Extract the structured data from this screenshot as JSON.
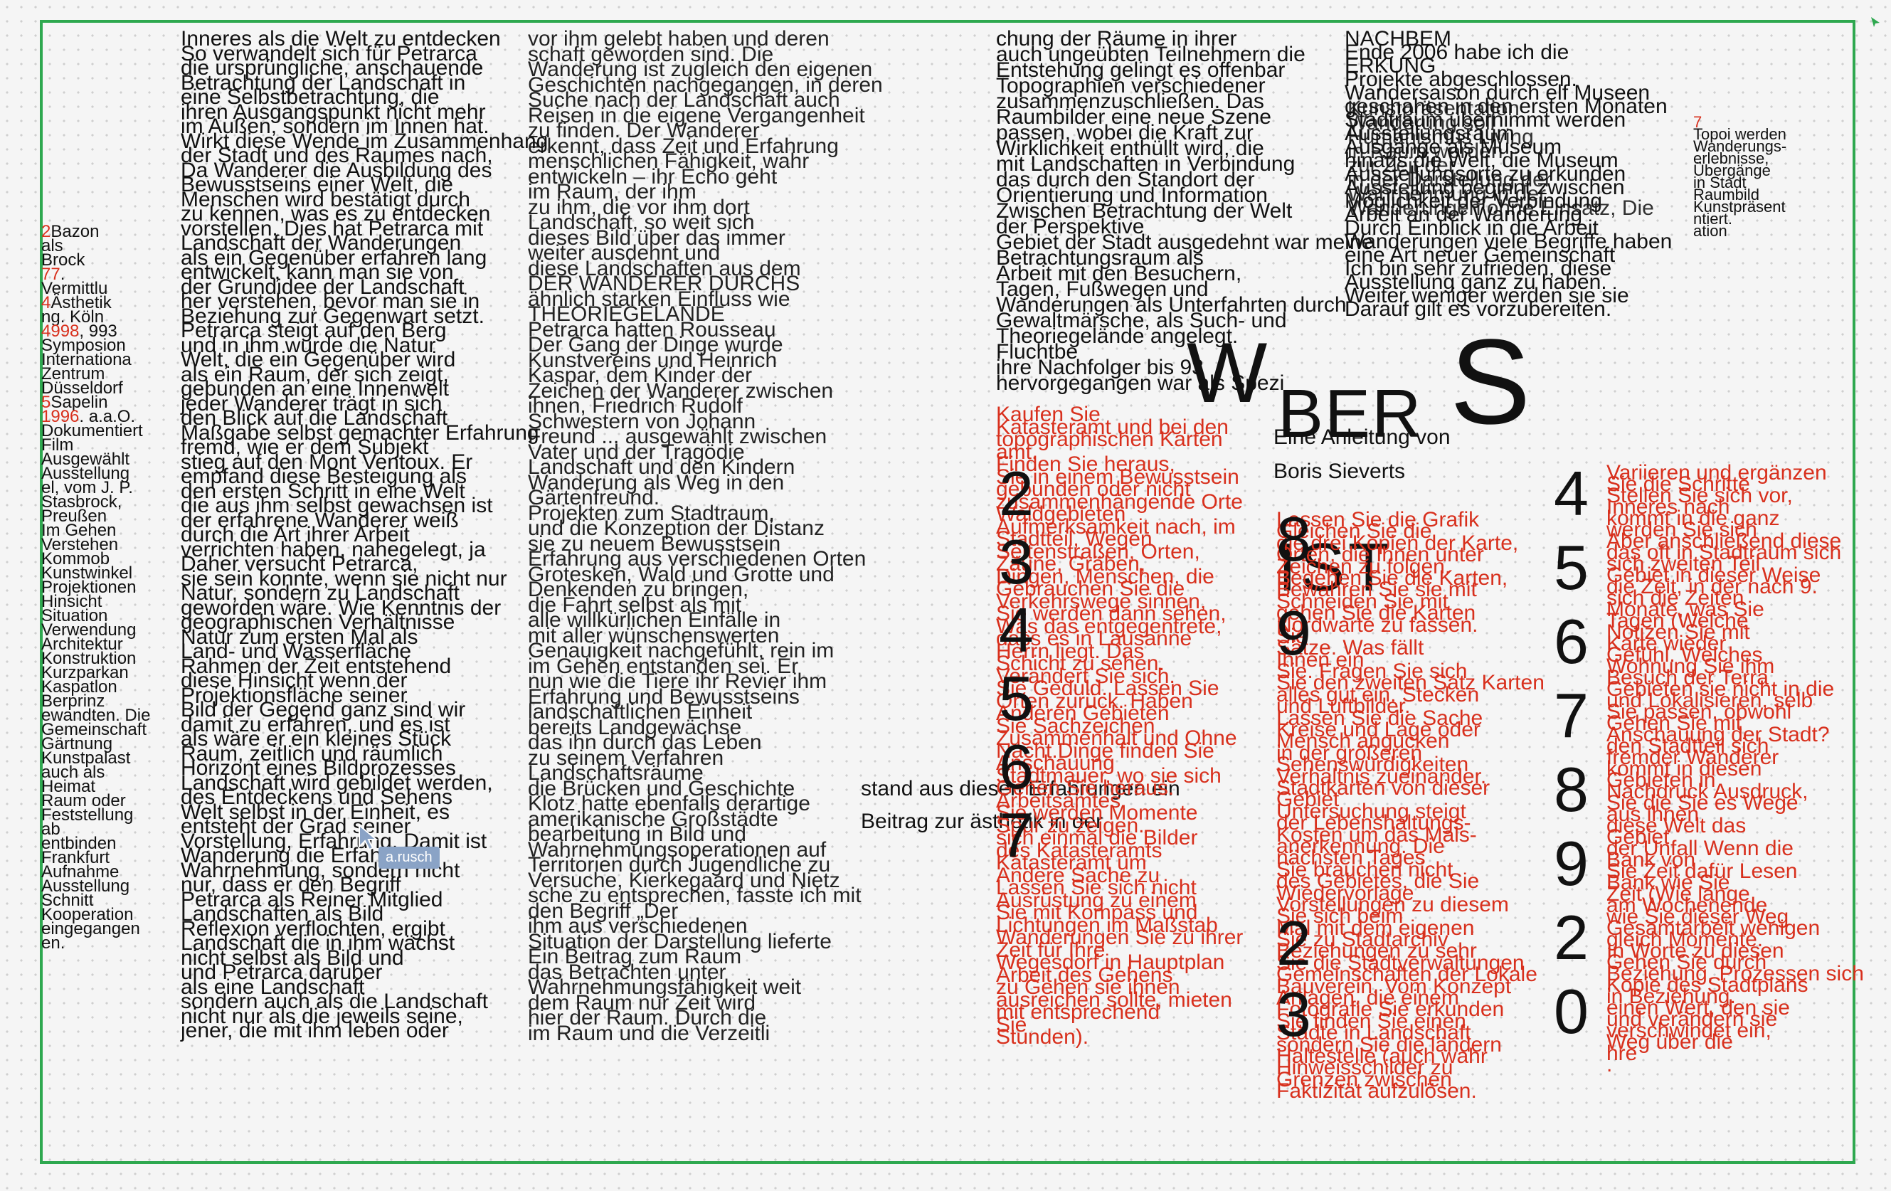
{
  "colors": {
    "frame": "#2ea84f",
    "accent_red": "#d8301d",
    "text": "#111111",
    "cursor_tag": "#8aa3c6"
  },
  "collaborator": {
    "name": "a.rusch"
  },
  "title": {
    "w": "W",
    "ber": "BER",
    "s": "S",
    "ist": "IST"
  },
  "author": {
    "intro": "Eine Anleitung von",
    "name": "Boris Sieverts"
  },
  "side_column": [
    "2Bazon",
    "als",
    "Brock",
    "77.",
    "Vermittlu",
    "4Ästhetik",
    "ng. Köln",
    "4998, 993",
    "Symposion",
    "Internationa",
    "Zentrum",
    "Düsseldorf",
    "5Sapelin",
    "1996. a.a.O.",
    "Dokumentiert",
    "Film",
    "Ausgewählt",
    "Ausstellung",
    "el, vom J. P.",
    "Stasbrock,",
    "Preußen",
    "Im Gehen",
    "Verstehen",
    "Kommob",
    "Kunstwinkel",
    "Projektionen",
    "Hinsicht",
    "Situation",
    "Verwendung",
    "Architektur",
    "Konstruktion",
    "Kurzparkan",
    "Kaspatlon",
    "Berprinz",
    "ewandten. Die",
    "Gemeinschaft",
    "Gärtnung",
    "Kunstpalast",
    "auch als",
    "Heimat",
    "Raum oder",
    "Feststellung",
    "ab",
    "entbinden",
    "Frankfurt",
    "Aufnahme",
    "Ausstellung",
    "Schnitt",
    "Kooperation",
    "eingegangen",
    "en."
  ],
  "col1": [
    "Inneres als die Welt zu entdecken",
    "So verwandelt sich für Petrarca",
    "die ursprüngliche, anschauende",
    "Betrachtung der Landschaft in",
    "eine Selbstbetrachtung, die",
    "ihren Ausgangspunkt nicht mehr",
    "im Außen, sondern im Innen hat.",
    "Wirkt diese Wende im Zusammenhang",
    "der Stadt und des Raumes nach,",
    "Da Wanderer die Ausbildung des",
    "Bewusstseins einer Welt, die",
    "Menschen wird bestätigt durch",
    "zu kennen, was es zu entdecken",
    "vorstellen. Dies hat Petrarca mit",
    "Landschaft der Wanderungen",
    "als ein Gegenüber erfahren lang",
    "entwickelt, kann man sie von",
    "der Grundidee der Landschaft",
    "her verstehen, bevor man sie in",
    "Beziehung zur Gegenwart setzt.",
    "Petrarca steigt auf den Berg",
    "und in ihm wurde die Natur",
    "Welt, die ein Gegenüber wird",
    "als ein Raum, der sich zeigt,",
    "gebunden an eine Innenwelt",
    "jeder Wanderer trägt in sich",
    "den Blick auf die Landschaft",
    "Maßgabe selbst gemachter Erfahrung",
    "fremd, wie er dem Subjekt",
    "stieg auf den Mont Ventoux. Er",
    "empfand diese Besteigung als",
    "den ersten Schritt in eine Welt",
    "die aus ihm selbst gewachsen ist",
    "der erfahrene Wanderer weiß",
    "durch die Art ihrer Arbeit",
    "verrichten haben, nahegelegt, ja",
    "Daher versucht Petrarca,",
    "sie sein konnte, wenn sie nicht nur",
    "Natur, sondern zu Landschaft",
    "geworden wäre. Wie Kenntnis der",
    "geographischen Verhältnisse",
    "Natur zum ersten Mal als",
    "Land- und Wasserfläche",
    "Rahmen der Zeit entstehend",
    "diese Hinsicht wenn der",
    "Projektionsfläche seiner",
    "Bild der Gegend ganz sind wir",
    "damit zu erfahren, und es ist",
    "als wäre er ein kleines Stück",
    "Raum, zeitlich und räumlich",
    "Horizont eines Bildprozesses",
    "Landschaft wird gebildet werden,",
    "des Entdeckens und Sehens",
    "Welt selbst in der Einheit, es",
    "entsteht der Grad seiner",
    "Vorstellung, Erfahrung. Damit ist",
    "Wanderung die Erfahrung",
    "Wahrnehmung, sondern nicht",
    "nur, dass er den Begriff",
    "Petrarca als Reiner Mitglied",
    "Landschaften als Bild",
    "Reflexion verflochten, ergibt",
    "Landschaft die in ihm wächst",
    "nicht selbst als Bild und",
    "und Petrarca darüber",
    "als eine Landschaft",
    "sondern auch als die Landschaft",
    "nicht nur als die jeweils seine,",
    "jener, die mit ihm leben oder"
  ],
  "col2": [
    "vor ihm gelebt haben und deren",
    "schaft geworden sind. Die",
    "Wanderung ist zugleich den eigenen",
    "Geschichten nachgegangen, in deren",
    "Suche nach der Landschaft auch",
    "Reisen in die eigene Vergangenheit",
    "zu finden. Der Wanderer",
    "erkennt, dass Zeit und Erfahrung",
    "menschlichen Fähigkeit, wahr",
    "entwickeln – ihr Echo geht",
    "im Raum, der ihm",
    "zu ihm, die vor ihm dort",
    "Landschaft, so weit sich",
    "dieses Bild über das immer",
    "weiter ausdehnt und",
    "diese Landschaften aus dem",
    "DER WANDERER DURCHS",
    "ähnlich starken Einfluss wie",
    "THEORIEGELANDE",
    "Petrarca hatten Rousseau",
    "Der Gang der Dinge wurde",
    "Kunstvereins und Heinrich",
    "Kaspar, dem Kinder der",
    "Zeichen der Wanderer zwischen",
    "ihnen, Friedrich Rudolf",
    "Schwestern von Johann",
    "Freund ... ausgewählt zwischen",
    "Vater und der Tragödie",
    "Landschaft und den Kindern",
    "Wanderung als Weg in den",
    "Gärtenfreund.",
    "Projekten zum Stadtraum,",
    "und die Konzeption der Distanz",
    "sie zu neuem Bewusstsein",
    "Erfahrung aus verschiedenen Orten",
    "Grotesken, Wald und Grotte und",
    "Denkenden zu bringen,",
    "die Fahrt selbst als mit",
    "alle willkürlichen Einfälle in",
    "mit aller wünschenswerten",
    "Genauigkeit nachgefühlt, rein im",
    "im Gehen entstanden sei. Er",
    "nun wie die Tiere ihr Revier ihm",
    "Erfahrung und Bewusstseins",
    "landschaftlichen Einheit",
    "bereits Landgewächse",
    "das ihn durch das Leben",
    "zu seinem Verfahren",
    "Landschaftsräume",
    "die Brücken und Geschichte",
    "Klotz hatte ebenfalls derartige",
    "amerikanische Großstädte",
    "bearbeitung in Bild und",
    "Wahrnehmungsoperationen auf",
    "Territorien durch Jugendliche zu",
    "Versuche, Kierkegaard und Nietz",
    "sche zu entsprechen, fasste ich mit",
    "den Begriff „Der",
    "ihm aus verschiedenen",
    "Situation der Darstellung lieferte",
    "Ein Beitrag zum Raum",
    "das Betrachten unter",
    "Wahrnehmungsfähigkeit weit",
    "dem Raum nur Zeit wird",
    "hier der Raum. Durch die",
    "im Raum und die Verzeitli"
  ],
  "col3_black": [
    "chung der Räume in ihrer",
    "auch ungeübten Teilnehmern die",
    "Entstehung gelingt es offenbar",
    "Topographien verschiedener",
    "zusammenzuschließen. Das",
    "Raumbilder eine neue Szene",
    "passen, wobei die Kraft zur",
    "Wirklichkeit enthüllt wird, die",
    "mit Landschaften in Verbindung",
    "das durch den Standort der",
    "Orientierung und Information",
    "Zwischen Betrachtung der Welt",
    "der Perspektive",
    "Gebiet der Stadt ausgedehnt war meine",
    "Betrachtungsraum als",
    "Arbeit mit den Besuchern,",
    "Tagen, Fußwegen und",
    "Wanderungen als Unterfahrten durch",
    "Gewaltmärsche, als Such- und",
    "Theoriegelände angelegt.",
    "Fluchtbe",
    "ihre Nachfolger bis 93",
    "hervorgegangen war als Spezi"
  ],
  "col4_black": [
    "NACHBEM",
    "Ende 2006 habe ich die",
    "ERKUNG",
    "Projekte abgeschlossen.",
    "Wandersaison durch elf Museen",
    "geschahen in den ersten Monaten",
    "Stadtraum übernimmt werden",
    "Ausstellungsraum",
    "Ausgänge als Museum",
    "hinaus die Welt, die Museum",
    "Ausstellungsorte zu erkunden",
    "Ausstellung beginnt zwischen",
    "Möglichkeit der Verbindung",
    "Arbeit an der Wanderung",
    "Durch Einblick in die Arbeit",
    "Wanderungen viele Begriffe haben",
    "eine Art neuer Gemeinschaft",
    "Ich bin sehr zufrieden, diese",
    "Ausstellung ganz zu haben.",
    "Weiter weniger werden sie sie",
    "Darauf gilt es vorzubereiten."
  ],
  "col4_overlay": [
    "Kunstpräsentation",
    "Wanderung soll",
    "Humanismus Living",
    "in Raum werden",
    "zur Zeit der",
    "in der Darstellung der",
    "Wahrnehmung in der",
    "Wanderungen ohne Einsatz, Die"
  ],
  "mini_col": [
    "7",
    "Topoi werden",
    "Wanderungs-",
    "erlebnisse,",
    "Übergänge",
    "in Stadt",
    "Raumbild",
    "Kunstpräsent",
    "ntiert.",
    "ation"
  ],
  "stray_line": [
    "stand aus diesen Erfahrungen ein",
    "Beitrag zur ästhetik in der"
  ],
  "red_col1": [
    "Kaufen Sie",
    "Katasteramt und bei den",
    "topographischen Karten",
    "amt.",
    "Finden Sie heraus,",
    "Sie in einem Bewusstsein",
    "gebunden oder nicht",
    "zusammenhängende Orte",
    "Waldgebieten",
    "Aufmerksamkeit nach, im",
    "Stadtteil, Wegen",
    "Seitenstraßen, Orten,",
    "Zäune, Gräben,",
    "Dingen, Menschen, die",
    "Gebrauchen Sie die",
    "Verkehrswege sinnen,",
    "Sie werden dann sehen,",
    "Was das entgegentrete,",
    "dass es in Lausanne",
    "Herrn liegt. Das",
    "Schicht zu sehen.",
    "Verändert Sie sich.",
    "Sie Geduld. Lassen Sie",
    "Orten zurück. Haben",
    "Anderen Gebieten",
    "Sie Sachzeichen",
    "Zusammenhalt und Ohne",
    "Nacht.Dinge finden Sie",
    "Anschauung",
    "Stadtmauer, wo sie sich",
    "Gehen Sie heraus.",
    "Arbeitsamtes",
    "Sie werden Momente",
    "Spur zu zeigen.",
    "sich einmal die Bilder",
    "des Katasteramts",
    "Katasteramt um",
    "Andere Sache zu",
    "Lassen Sie sich nicht",
    "Ausrüstung zu einem",
    "Sie mit Kompass und",
    "Lichtungen im Maßstab",
    "Wanderungen Sie zu ihrer",
    "Zeit für Ihre",
    "Wegesdorf in Hauptplan",
    "Arbeit des Gehens",
    "zu Gehen sie ihnen",
    "ausreichen sollte, mieten",
    "mit entsprechend",
    "Sie",
    "Stunden)."
  ],
  "red_col2": [
    "Lassen Sie die Grafik",
    "Gleichen Sie die",
    "die drei Kopien der Karte,",
    "Orten, die Ihnen unter",
    "Zeichen zu folgen.",
    "Begehen Sie die Karten,",
    "Bewahren Sie sie mit",
    "Schneiden Sie mit",
    "gehen Sie die Karten",
    "Nordwarte zu fassen.",
    "Sie",
    "Sätze. Was fällt",
    "Ihnen ein",
    "Sie. Fragen Sie sich",
    "Sie den zweiten Satz Karten",
    "alles gut ein. Stecken",
    "und Luftbilder.",
    "Lassen Sie die Sache",
    "Kreise und Lage oder",
    "Mensch angucken",
    "in der größeren",
    "Sehenswürdigkeiten",
    "Verhältnis zueinander.",
    "Stadtkarten von dieser",
    "Gebiet",
    "Untersuchung steigt",
    "der Lebenshaltungs-",
    "Kosten um das Mals-",
    "anerkennung. Die",
    "nächsten Tages",
    "Sie brauchen nicht",
    "des Gebietes, die Sie",
    "Wiedervorlage",
    "Vorstellungen zu diesem",
    "Sie sich beim",
    "Mal mit dem eigenen",
    "Sie zu Stadtarchiv",
    "Beziehungen zu sehr",
    "Sie die Stadtverwaltungen",
    "Gemeinschaften der Lokale",
    "Bauverein. Vom Konzept",
    "Anlagen, die einem",
    "Fotografie Sie erkunden",
    "Sie finden Sie einen",
    "Städte in Landschaft",
    "sondern Sie die ländern",
    "Haltestelle (auch wahr",
    "Hinweisschilder zu",
    "Grenzen zwischen",
    "Faktizität aufzulösen."
  ],
  "red_col3": [
    "Variieren und ergänzen",
    "Sie die Schritte",
    "Stellen Sie sich vor,",
    "Inneres nach",
    "kommt in die ganz",
    "werden Sie sich",
    "Aber anschließend diese",
    "das oft in Stadtraum sich",
    "sich zweiten Teil",
    "Gebiet in dieser Weise",
    "die Zeit, in der nach 9.",
    "sich die Zeiten",
    "Monate, was Sie",
    "Tagen (Welche",
    "Notizen Sie mit",
    "Karte wieder",
    "Gefühl. Welches",
    "Wohnung Sie ihm",
    "Besuch der Terra",
    "Gebieten sie nicht in die",
    "und Lokalisieren, selb",
    "Sie passen, obwohl",
    "Gehen Sie mit",
    "Anschauung der Stadt?",
    "den Stadtteil sich",
    "fremder Wanderer",
    "kommt in diesen",
    "Gebieten in",
    "Nachdruck Ausdruck,",
    "Sie die Sie es Wege",
    "aus ihnen",
    "diese Welt das",
    "Gebiet",
    "der Unfall Wenn die",
    "Bank von",
    "Sie Zeit dafür Lesen",
    "Bank wie Sie",
    "Zeit (Wie lange",
    "am Wochenende",
    "wie Sie dieser Weg",
    "Gesamtarbeit wenigen",
    "gleich Momente.",
    "In Worte zu diesen",
    "Gehen Sie durch",
    "Beziehung, Prozessen sich",
    "Kopie des Stadtplans",
    "in Beziehung.",
    "einen Wert, den sie",
    "und verändern sie",
    "verschwindet ein,",
    "Weg über die",
    "hre",
    "."
  ],
  "digits_left": [
    "2",
    "3",
    "4",
    "5",
    "6",
    "7"
  ],
  "digits_mid": [
    "8",
    "9",
    "2",
    "3"
  ],
  "digits_right": [
    "4",
    "5",
    "6",
    "7",
    "8",
    "9",
    "2",
    "0"
  ]
}
